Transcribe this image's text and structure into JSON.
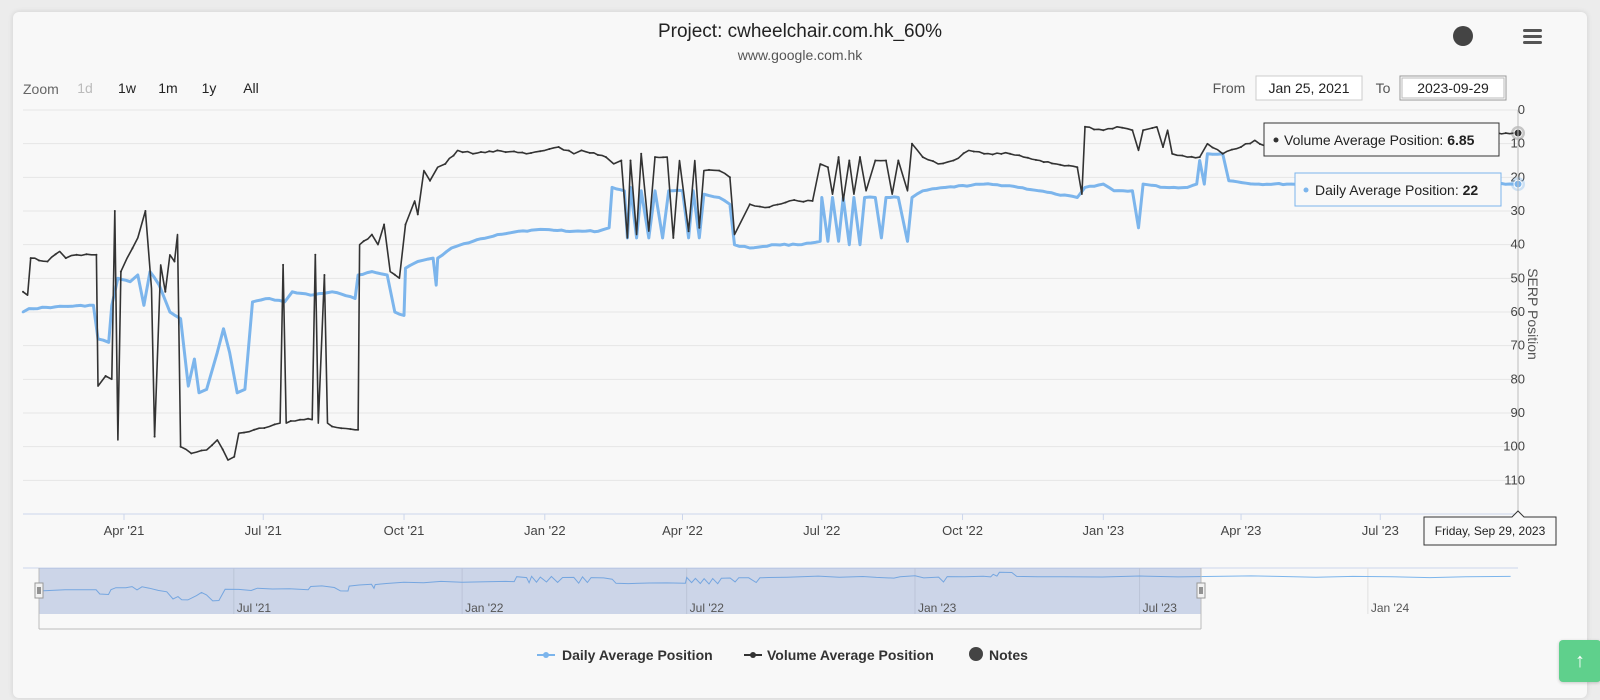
{
  "chart_data": {
    "type": "line",
    "title": "Project: cwheelchair.com.hk_60%",
    "subtitle": "www.google.com.hk",
    "ylabel": "SERP Position",
    "ylim": [
      0,
      120
    ],
    "y_reversed": true,
    "y_ticks": [
      0,
      10,
      20,
      30,
      40,
      50,
      60,
      70,
      80,
      90,
      100,
      110
    ],
    "x_range": [
      "2021-01-25",
      "2023-09-29"
    ],
    "x_ticks": [
      {
        "date": "2021-04-01",
        "label": "Apr '21"
      },
      {
        "date": "2021-07-01",
        "label": "Jul '21"
      },
      {
        "date": "2021-10-01",
        "label": "Oct '21"
      },
      {
        "date": "2022-01-01",
        "label": "Jan '22"
      },
      {
        "date": "2022-04-01",
        "label": "Apr '22"
      },
      {
        "date": "2022-07-01",
        "label": "Jul '22"
      },
      {
        "date": "2022-10-01",
        "label": "Oct '22"
      },
      {
        "date": "2023-01-01",
        "label": "Jan '23"
      },
      {
        "date": "2023-04-01",
        "label": "Apr '23"
      },
      {
        "date": "2023-07-01",
        "label": "Jul '23"
      }
    ],
    "grid": true,
    "legend_position": "bottom-center",
    "series": [
      {
        "name": "Daily Average Position",
        "color": "#7cb5ec",
        "points": [
          [
            "2021-01-25",
            60
          ],
          [
            "2021-01-29",
            59
          ],
          [
            "2021-02-15",
            58.5
          ],
          [
            "2021-03-12",
            58
          ],
          [
            "2021-03-15",
            68
          ],
          [
            "2021-03-22",
            69
          ],
          [
            "2021-03-24",
            58
          ],
          [
            "2021-03-28",
            50
          ],
          [
            "2021-04-05",
            51
          ],
          [
            "2021-04-10",
            49
          ],
          [
            "2021-04-14",
            58
          ],
          [
            "2021-04-18",
            48
          ],
          [
            "2021-04-24",
            52
          ],
          [
            "2021-05-01",
            60
          ],
          [
            "2021-05-08",
            62
          ],
          [
            "2021-05-13",
            82
          ],
          [
            "2021-05-17",
            74
          ],
          [
            "2021-05-20",
            84
          ],
          [
            "2021-05-25",
            83
          ],
          [
            "2021-06-01",
            72
          ],
          [
            "2021-06-05",
            65
          ],
          [
            "2021-06-09",
            72
          ],
          [
            "2021-06-14",
            84
          ],
          [
            "2021-06-19",
            83
          ],
          [
            "2021-06-24",
            57
          ],
          [
            "2021-07-05",
            56
          ],
          [
            "2021-07-15",
            57
          ],
          [
            "2021-07-20",
            54
          ],
          [
            "2021-08-01",
            55
          ],
          [
            "2021-08-15",
            54
          ],
          [
            "2021-08-30",
            56
          ],
          [
            "2021-09-01",
            49
          ],
          [
            "2021-09-10",
            48
          ],
          [
            "2021-09-20",
            49
          ],
          [
            "2021-09-25",
            60
          ],
          [
            "2021-10-01",
            61
          ],
          [
            "2021-10-02",
            47
          ],
          [
            "2021-10-10",
            45
          ],
          [
            "2021-10-20",
            44
          ],
          [
            "2021-10-22",
            52
          ],
          [
            "2021-10-23",
            44
          ],
          [
            "2021-11-01",
            41
          ],
          [
            "2021-11-15",
            39
          ],
          [
            "2021-12-01",
            37
          ],
          [
            "2021-12-15",
            36
          ],
          [
            "2022-01-01",
            35.5
          ],
          [
            "2022-01-20",
            36
          ],
          [
            "2022-02-05",
            36
          ],
          [
            "2022-02-12",
            35
          ],
          [
            "2022-02-14",
            23
          ],
          [
            "2022-02-22",
            24
          ],
          [
            "2022-02-24",
            38
          ],
          [
            "2022-02-26",
            23
          ],
          [
            "2022-03-02",
            38
          ],
          [
            "2022-03-05",
            24
          ],
          [
            "2022-03-10",
            38
          ],
          [
            "2022-03-14",
            24
          ],
          [
            "2022-03-19",
            38
          ],
          [
            "2022-03-23",
            24
          ],
          [
            "2022-04-01",
            24
          ],
          [
            "2022-04-05",
            38
          ],
          [
            "2022-04-08",
            24
          ],
          [
            "2022-04-12",
            38
          ],
          [
            "2022-04-15",
            25
          ],
          [
            "2022-04-25",
            26
          ],
          [
            "2022-05-02",
            28
          ],
          [
            "2022-05-05",
            40
          ],
          [
            "2022-05-15",
            41
          ],
          [
            "2022-06-01",
            40
          ],
          [
            "2022-06-15",
            40
          ],
          [
            "2022-06-30",
            39
          ],
          [
            "2022-07-01",
            26
          ],
          [
            "2022-07-05",
            39
          ],
          [
            "2022-07-08",
            26
          ],
          [
            "2022-07-12",
            39
          ],
          [
            "2022-07-15",
            26
          ],
          [
            "2022-07-19",
            40
          ],
          [
            "2022-07-22",
            26
          ],
          [
            "2022-07-26",
            40
          ],
          [
            "2022-07-29",
            26
          ],
          [
            "2022-08-05",
            26
          ],
          [
            "2022-08-09",
            38
          ],
          [
            "2022-08-12",
            26
          ],
          [
            "2022-08-20",
            26
          ],
          [
            "2022-08-26",
            39
          ],
          [
            "2022-08-29",
            26
          ],
          [
            "2022-09-05",
            24
          ],
          [
            "2022-09-20",
            23
          ],
          [
            "2022-10-15",
            22
          ],
          [
            "2022-11-01",
            22.5
          ],
          [
            "2022-11-20",
            24
          ],
          [
            "2022-12-01",
            25
          ],
          [
            "2022-12-15",
            26
          ],
          [
            "2022-12-20",
            23
          ],
          [
            "2023-01-01",
            22
          ],
          [
            "2023-01-08",
            24
          ],
          [
            "2023-01-20",
            24
          ],
          [
            "2023-01-24",
            35
          ],
          [
            "2023-01-27",
            22
          ],
          [
            "2023-02-10",
            23
          ],
          [
            "2023-02-25",
            23
          ],
          [
            "2023-03-03",
            22
          ],
          [
            "2023-03-05",
            15
          ],
          [
            "2023-03-08",
            22
          ],
          [
            "2023-03-10",
            13
          ],
          [
            "2023-03-20",
            13
          ],
          [
            "2023-03-24",
            21
          ],
          [
            "2023-04-10",
            22
          ],
          [
            "2023-05-01",
            22
          ],
          [
            "2023-06-01",
            22
          ],
          [
            "2023-07-01",
            22
          ],
          [
            "2023-08-01",
            22
          ],
          [
            "2023-09-29",
            22
          ]
        ]
      },
      {
        "name": "Volume Average Position",
        "color": "#333333",
        "points": [
          [
            "2021-01-25",
            54
          ],
          [
            "2021-01-28",
            55
          ],
          [
            "2021-01-30",
            44
          ],
          [
            "2021-02-10",
            45
          ],
          [
            "2021-02-18",
            42
          ],
          [
            "2021-02-22",
            44
          ],
          [
            "2021-03-01",
            43
          ],
          [
            "2021-03-14",
            43
          ],
          [
            "2021-03-15",
            82
          ],
          [
            "2021-03-20",
            79
          ],
          [
            "2021-03-24",
            80
          ],
          [
            "2021-03-26",
            30
          ],
          [
            "2021-03-28",
            98
          ],
          [
            "2021-03-30",
            48
          ],
          [
            "2021-04-03",
            44
          ],
          [
            "2021-04-10",
            38
          ],
          [
            "2021-04-15",
            30
          ],
          [
            "2021-04-19",
            53
          ],
          [
            "2021-04-21",
            97
          ],
          [
            "2021-04-25",
            46
          ],
          [
            "2021-04-28",
            54
          ],
          [
            "2021-05-01",
            43
          ],
          [
            "2021-05-04",
            45
          ],
          [
            "2021-05-06",
            37
          ],
          [
            "2021-05-08",
            100
          ],
          [
            "2021-05-15",
            102
          ],
          [
            "2021-05-25",
            101
          ],
          [
            "2021-06-01",
            98
          ],
          [
            "2021-06-08",
            104
          ],
          [
            "2021-06-12",
            103
          ],
          [
            "2021-06-15",
            96
          ],
          [
            "2021-06-25",
            95
          ],
          [
            "2021-07-05",
            94
          ],
          [
            "2021-07-12",
            93
          ],
          [
            "2021-07-14",
            46
          ],
          [
            "2021-07-16",
            93
          ],
          [
            "2021-07-25",
            92
          ],
          [
            "2021-08-02",
            92
          ],
          [
            "2021-08-04",
            43
          ],
          [
            "2021-08-06",
            93
          ],
          [
            "2021-08-10",
            49
          ],
          [
            "2021-08-12",
            93
          ],
          [
            "2021-08-15",
            94
          ],
          [
            "2021-08-30",
            95
          ],
          [
            "2021-09-01",
            95
          ],
          [
            "2021-09-02",
            40
          ],
          [
            "2021-09-10",
            37
          ],
          [
            "2021-09-14",
            40
          ],
          [
            "2021-09-18",
            34
          ],
          [
            "2021-09-22",
            48
          ],
          [
            "2021-09-28",
            50
          ],
          [
            "2021-10-02",
            34
          ],
          [
            "2021-10-08",
            27
          ],
          [
            "2021-10-10",
            31
          ],
          [
            "2021-10-14",
            18
          ],
          [
            "2021-10-18",
            21
          ],
          [
            "2021-10-23",
            17
          ],
          [
            "2021-10-28",
            16
          ],
          [
            "2021-11-05",
            12
          ],
          [
            "2021-11-15",
            13
          ],
          [
            "2021-12-01",
            12
          ],
          [
            "2021-12-20",
            13
          ],
          [
            "2022-01-01",
            12
          ],
          [
            "2022-01-10",
            11
          ],
          [
            "2022-01-20",
            13
          ],
          [
            "2022-01-25",
            12
          ],
          [
            "2022-02-10",
            14
          ],
          [
            "2022-02-15",
            16
          ],
          [
            "2022-02-20",
            15
          ],
          [
            "2022-02-24",
            38
          ],
          [
            "2022-02-26",
            15
          ],
          [
            "2022-03-02",
            37
          ],
          [
            "2022-03-05",
            13
          ],
          [
            "2022-03-10",
            36
          ],
          [
            "2022-03-14",
            14
          ],
          [
            "2022-03-22",
            14
          ],
          [
            "2022-03-26",
            38
          ],
          [
            "2022-03-30",
            15
          ],
          [
            "2022-04-05",
            36
          ],
          [
            "2022-04-09",
            15
          ],
          [
            "2022-04-12",
            35
          ],
          [
            "2022-04-15",
            18
          ],
          [
            "2022-04-25",
            18
          ],
          [
            "2022-05-02",
            20
          ],
          [
            "2022-05-05",
            37
          ],
          [
            "2022-05-15",
            28
          ],
          [
            "2022-05-25",
            29
          ],
          [
            "2022-06-10",
            27
          ],
          [
            "2022-06-25",
            27
          ],
          [
            "2022-06-30",
            16
          ],
          [
            "2022-07-05",
            17
          ],
          [
            "2022-07-08",
            25
          ],
          [
            "2022-07-12",
            14
          ],
          [
            "2022-07-15",
            27
          ],
          [
            "2022-07-19",
            15
          ],
          [
            "2022-07-22",
            25
          ],
          [
            "2022-07-26",
            14
          ],
          [
            "2022-07-30",
            24
          ],
          [
            "2022-08-05",
            15
          ],
          [
            "2022-08-12",
            15
          ],
          [
            "2022-08-16",
            25
          ],
          [
            "2022-08-20",
            15
          ],
          [
            "2022-08-26",
            24
          ],
          [
            "2022-08-29",
            10
          ],
          [
            "2022-09-05",
            14
          ],
          [
            "2022-09-15",
            16
          ],
          [
            "2022-09-25",
            15
          ],
          [
            "2022-10-05",
            12
          ],
          [
            "2022-10-15",
            13
          ],
          [
            "2022-11-01",
            13
          ],
          [
            "2022-11-10",
            14
          ],
          [
            "2022-12-01",
            16
          ],
          [
            "2022-12-15",
            17
          ],
          [
            "2022-12-18",
            25
          ],
          [
            "2022-12-20",
            5
          ],
          [
            "2023-01-01",
            6
          ],
          [
            "2023-01-10",
            5
          ],
          [
            "2023-01-20",
            6
          ],
          [
            "2023-01-24",
            12
          ],
          [
            "2023-01-27",
            6
          ],
          [
            "2023-02-05",
            5
          ],
          [
            "2023-02-09",
            11
          ],
          [
            "2023-02-12",
            6
          ],
          [
            "2023-02-15",
            13
          ],
          [
            "2023-02-25",
            14
          ],
          [
            "2023-03-05",
            14
          ],
          [
            "2023-03-10",
            10
          ],
          [
            "2023-03-20",
            13
          ],
          [
            "2023-04-01",
            11
          ],
          [
            "2023-04-10",
            9
          ],
          [
            "2023-04-20",
            12
          ],
          [
            "2023-05-01",
            11
          ],
          [
            "2023-06-01",
            8
          ],
          [
            "2023-07-01",
            7
          ],
          [
            "2023-08-01",
            7
          ],
          [
            "2023-09-29",
            6.85
          ]
        ]
      }
    ],
    "navigator": {
      "ticks": [
        "Jul '21",
        "Jan '22",
        "Jul '22",
        "Jan '23",
        "Jul '23",
        "Jan '24"
      ]
    }
  },
  "ui": {
    "zoom": {
      "label": "Zoom",
      "buttons": [
        "1d",
        "1w",
        "1m",
        "1y",
        "All"
      ],
      "disabled": [
        "1d"
      ]
    },
    "range": {
      "from_label": "From",
      "from_value": "Jan 25, 2021",
      "to_label": "To",
      "to_value": "2023-09-29"
    },
    "tooltip_volume": {
      "label": "Volume Average Position: ",
      "value": "6.85"
    },
    "tooltip_daily": {
      "label": "Daily Average Position: ",
      "value": "22"
    },
    "crosshair_label": "Friday, Sep 29, 2023",
    "legend": [
      {
        "name": "Daily Average Position",
        "color": "#7cb5ec"
      },
      {
        "name": "Volume Average Position",
        "color": "#333333"
      },
      {
        "name": "Notes",
        "color": "#444444"
      }
    ],
    "notes_icon": "notes-dot-icon",
    "menu_icon": "hamburger-menu-icon",
    "scroll_icon": "arrow-up-icon"
  }
}
